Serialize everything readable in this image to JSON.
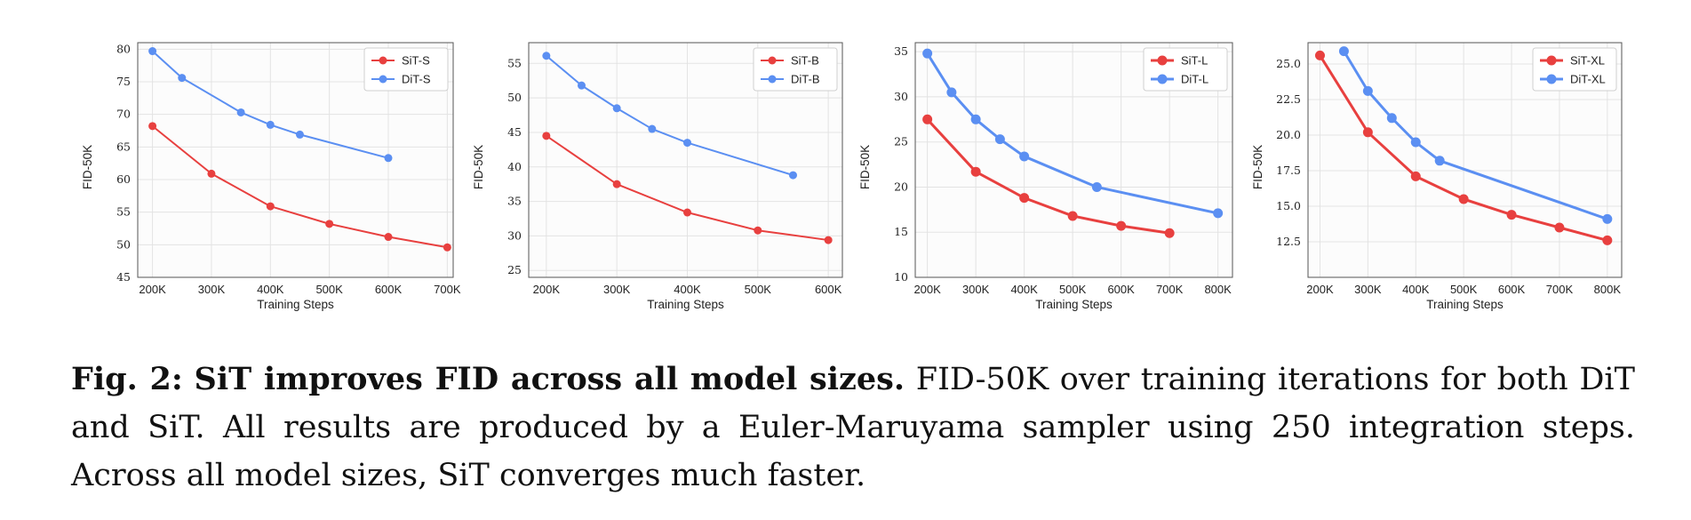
{
  "caption": {
    "label": "Fig. 2:",
    "lead": "SiT improves FID across all model sizes.",
    "body": "FID-50K over training iterations for both DiT and SiT. All results are produced by a Euler-Maruyama sampler using 250 integration steps. Across all model sizes, SiT converges much faster."
  },
  "colors": {
    "sit": "#e8403f",
    "dit": "#5b8ff2",
    "grid": "#e3e3e3",
    "axis": "#555555"
  },
  "chart_data": [
    {
      "type": "line",
      "xlabel": "Training Steps",
      "ylabel": "FID-50K",
      "legend_position": "top-right",
      "grid": true,
      "xlim": [
        175,
        710
      ],
      "ylim": [
        45,
        81
      ],
      "xticks": [
        200,
        300,
        400,
        500,
        600,
        700
      ],
      "xtick_labels": [
        "200K",
        "300K",
        "400K",
        "500K",
        "600K",
        "700K"
      ],
      "yticks": [
        45,
        50,
        55,
        60,
        65,
        70,
        75,
        80
      ],
      "ytick_labels": [
        "45",
        "50",
        "55",
        "60",
        "65",
        "70",
        "75",
        "80"
      ],
      "series": [
        {
          "name": "SiT-S",
          "color": "#e8403f",
          "x": [
            200,
            300,
            400,
            500,
            600,
            700
          ],
          "y": [
            68.2,
            60.9,
            55.9,
            53.2,
            51.2,
            49.6
          ]
        },
        {
          "name": "DiT-S",
          "color": "#5b8ff2",
          "x": [
            200,
            250,
            350,
            400,
            450,
            600
          ],
          "y": [
            79.7,
            75.6,
            70.3,
            68.4,
            66.9,
            63.3
          ]
        }
      ]
    },
    {
      "type": "line",
      "xlabel": "Training Steps",
      "ylabel": "FID-50K",
      "legend_position": "top-right",
      "grid": true,
      "xlim": [
        175,
        620
      ],
      "ylim": [
        24,
        58
      ],
      "xticks": [
        200,
        300,
        400,
        500,
        600
      ],
      "xtick_labels": [
        "200K",
        "300K",
        "400K",
        "500K",
        "600K"
      ],
      "yticks": [
        25,
        30,
        35,
        40,
        45,
        50,
        55
      ],
      "ytick_labels": [
        "25",
        "30",
        "35",
        "40",
        "45",
        "50",
        "55"
      ],
      "series": [
        {
          "name": "SiT-B",
          "color": "#e8403f",
          "x": [
            200,
            300,
            400,
            500,
            600
          ],
          "y": [
            44.5,
            37.5,
            33.4,
            30.8,
            29.4
          ]
        },
        {
          "name": "DiT-B",
          "color": "#5b8ff2",
          "x": [
            200,
            250,
            300,
            350,
            400,
            550
          ],
          "y": [
            56.1,
            51.8,
            48.5,
            45.5,
            43.5,
            38.8
          ]
        }
      ]
    },
    {
      "type": "line",
      "xlabel": "Training Steps",
      "ylabel": "FID-50K",
      "legend_position": "top-right",
      "grid": true,
      "xlim": [
        175,
        830
      ],
      "ylim": [
        10,
        36
      ],
      "xticks": [
        200,
        300,
        400,
        500,
        600,
        700,
        800
      ],
      "xtick_labels": [
        "200K",
        "300K",
        "400K",
        "500K",
        "600K",
        "700K",
        "800K"
      ],
      "yticks": [
        10,
        15,
        20,
        25,
        30,
        35
      ],
      "ytick_labels": [
        "10",
        "15",
        "20",
        "25",
        "30",
        "35"
      ],
      "series": [
        {
          "name": "SiT-L",
          "color": "#e8403f",
          "x": [
            200,
            300,
            400,
            500,
            600,
            700
          ],
          "y": [
            27.5,
            21.7,
            18.8,
            16.8,
            15.7,
            14.9
          ]
        },
        {
          "name": "DiT-L",
          "color": "#5b8ff2",
          "x": [
            200,
            250,
            300,
            350,
            400,
            550,
            800
          ],
          "y": [
            34.8,
            30.5,
            27.5,
            25.3,
            23.4,
            20.0,
            17.1
          ]
        }
      ]
    },
    {
      "type": "line",
      "xlabel": "Training Steps",
      "ylabel": "FID-50K",
      "legend_position": "top-right",
      "grid": true,
      "xlim": [
        175,
        830
      ],
      "ylim": [
        10,
        26.5
      ],
      "xticks": [
        200,
        300,
        400,
        500,
        600,
        700,
        800
      ],
      "xtick_labels": [
        "200K",
        "300K",
        "400K",
        "500K",
        "600K",
        "700K",
        "800K"
      ],
      "yticks": [
        12.5,
        15.0,
        17.5,
        20.0,
        22.5,
        25.0
      ],
      "ytick_labels": [
        "12.5",
        "15.0",
        "17.5",
        "20.0",
        "22.5",
        "25.0"
      ],
      "series": [
        {
          "name": "SiT-XL",
          "color": "#e8403f",
          "x": [
            200,
            300,
            400,
            500,
            600,
            700,
            800
          ],
          "y": [
            25.6,
            20.2,
            17.1,
            15.5,
            14.4,
            13.5,
            12.6
          ]
        },
        {
          "name": "DiT-XL",
          "color": "#5b8ff2",
          "x": [
            250,
            300,
            350,
            400,
            450,
            800
          ],
          "y": [
            25.9,
            23.1,
            21.2,
            19.5,
            18.2,
            14.1
          ]
        }
      ]
    }
  ]
}
